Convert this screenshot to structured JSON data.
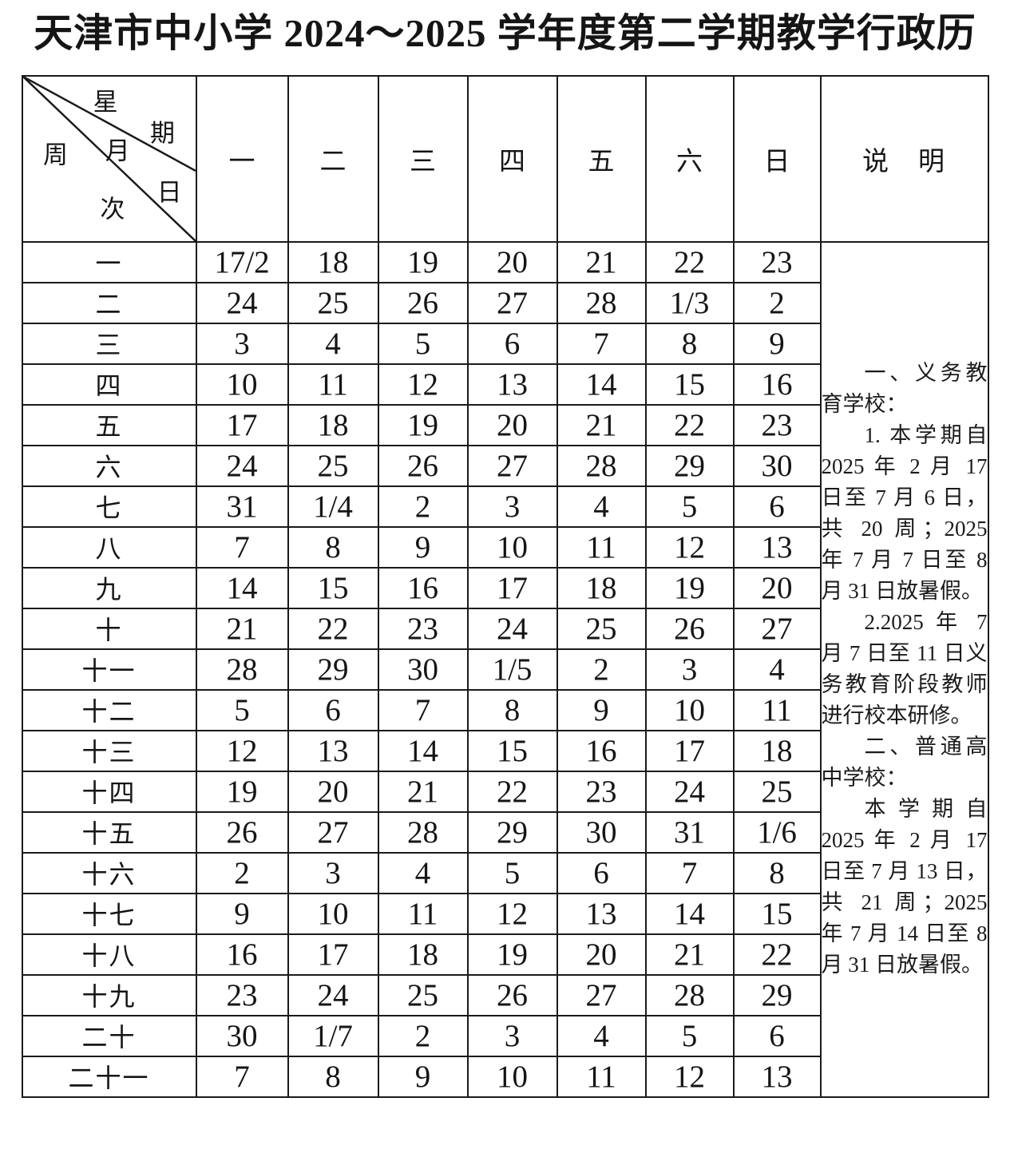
{
  "page": {
    "title": "天津市中小学 2024～2025 学年度第二学期教学行政历"
  },
  "calendar": {
    "corner": {
      "weekday_label": {
        "c1": "星",
        "c2": "期"
      },
      "monthday_label": {
        "c1": "月",
        "c2": "日"
      },
      "week_label": {
        "c1": "周",
        "c2": "次"
      }
    },
    "day_headers": [
      "一",
      "二",
      "三",
      "四",
      "五",
      "六",
      "日"
    ],
    "rows": [
      {
        "week": "一",
        "days": [
          "17/2",
          "18",
          "19",
          "20",
          "21",
          "22",
          "23"
        ]
      },
      {
        "week": "二",
        "days": [
          "24",
          "25",
          "26",
          "27",
          "28",
          "1/3",
          "2"
        ]
      },
      {
        "week": "三",
        "days": [
          "3",
          "4",
          "5",
          "6",
          "7",
          "8",
          "9"
        ]
      },
      {
        "week": "四",
        "days": [
          "10",
          "11",
          "12",
          "13",
          "14",
          "15",
          "16"
        ]
      },
      {
        "week": "五",
        "days": [
          "17",
          "18",
          "19",
          "20",
          "21",
          "22",
          "23"
        ]
      },
      {
        "week": "六",
        "days": [
          "24",
          "25",
          "26",
          "27",
          "28",
          "29",
          "30"
        ]
      },
      {
        "week": "七",
        "days": [
          "31",
          "1/4",
          "2",
          "3",
          "4",
          "5",
          "6"
        ]
      },
      {
        "week": "八",
        "days": [
          "7",
          "8",
          "9",
          "10",
          "11",
          "12",
          "13"
        ]
      },
      {
        "week": "九",
        "days": [
          "14",
          "15",
          "16",
          "17",
          "18",
          "19",
          "20"
        ]
      },
      {
        "week": "十",
        "days": [
          "21",
          "22",
          "23",
          "24",
          "25",
          "26",
          "27"
        ]
      },
      {
        "week": "十一",
        "days": [
          "28",
          "29",
          "30",
          "1/5",
          "2",
          "3",
          "4"
        ]
      },
      {
        "week": "十二",
        "days": [
          "5",
          "6",
          "7",
          "8",
          "9",
          "10",
          "11"
        ]
      },
      {
        "week": "十三",
        "days": [
          "12",
          "13",
          "14",
          "15",
          "16",
          "17",
          "18"
        ]
      },
      {
        "week": "十四",
        "days": [
          "19",
          "20",
          "21",
          "22",
          "23",
          "24",
          "25"
        ]
      },
      {
        "week": "十五",
        "days": [
          "26",
          "27",
          "28",
          "29",
          "30",
          "31",
          "1/6"
        ]
      },
      {
        "week": "十六",
        "days": [
          "2",
          "3",
          "4",
          "5",
          "6",
          "7",
          "8"
        ]
      },
      {
        "week": "十七",
        "days": [
          "9",
          "10",
          "11",
          "12",
          "13",
          "14",
          "15"
        ]
      },
      {
        "week": "十八",
        "days": [
          "16",
          "17",
          "18",
          "19",
          "20",
          "21",
          "22"
        ]
      },
      {
        "week": "十九",
        "days": [
          "23",
          "24",
          "25",
          "26",
          "27",
          "28",
          "29"
        ]
      },
      {
        "week": "二十",
        "days": [
          "30",
          "1/7",
          "2",
          "3",
          "4",
          "5",
          "6"
        ]
      },
      {
        "week": "二十一",
        "days": [
          "7",
          "8",
          "9",
          "10",
          "11",
          "12",
          "13"
        ]
      }
    ]
  },
  "notes": {
    "header": "说　明",
    "paragraphs": [
      "一、义务教育学校：",
      "1. 本学期自 2025 年 2 月 17 日至 7 月 6 日，共 20 周；2025 年 7 月 7 日至 8 月 31 日放暑假。",
      "2.2025 年 7 月 7 日至 11 日义务教育阶段教师进行校本研修。",
      "二、普通高中学校：",
      "本学期自 2025 年 2 月 17 日至 7 月 13 日，共 21 周；2025 年 7 月 14 日至 8 月 31 日放暑假。"
    ]
  },
  "colors": {
    "background": "#ffffff",
    "border": "#1a1a1a",
    "text": "#151515"
  }
}
